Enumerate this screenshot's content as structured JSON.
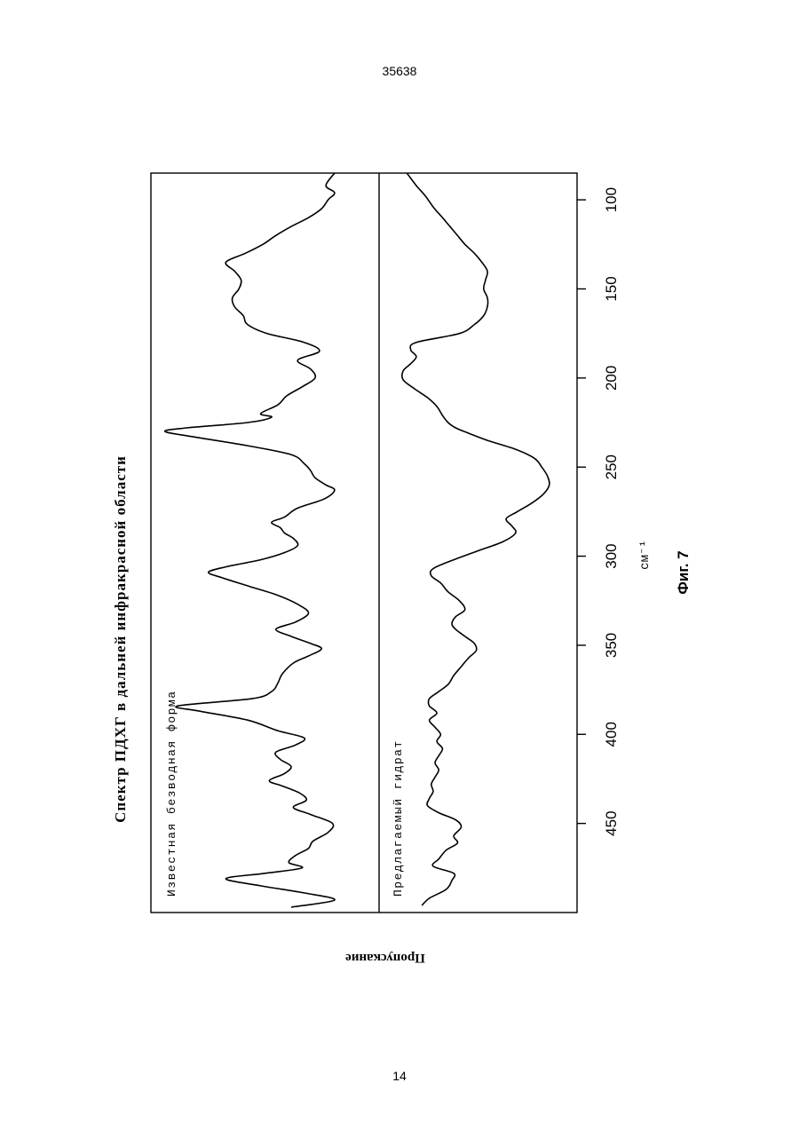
{
  "document": {
    "doc_number": "35638",
    "page_number": "14"
  },
  "chart_data": {
    "type": "line",
    "title": "Спектр ПДХГ в дальней инфракрасной области",
    "xlabel": "см⁻¹",
    "ylabel": "Пропускание",
    "caption": "Фиг. 7",
    "xlim": [
      85,
      500
    ],
    "ylim": [
      0,
      1
    ],
    "x_ticks": [
      100,
      150,
      200,
      250,
      300,
      350,
      400,
      450
    ],
    "series": [
      {
        "name": "Известная безводная форма",
        "points": [
          [
            85,
            0.82
          ],
          [
            92,
            0.78
          ],
          [
            96,
            0.82
          ],
          [
            100,
            0.79
          ],
          [
            105,
            0.76
          ],
          [
            110,
            0.7
          ],
          [
            115,
            0.62
          ],
          [
            120,
            0.55
          ],
          [
            125,
            0.49
          ],
          [
            130,
            0.41
          ],
          [
            135,
            0.32
          ],
          [
            140,
            0.36
          ],
          [
            145,
            0.39
          ],
          [
            150,
            0.38
          ],
          [
            155,
            0.35
          ],
          [
            160,
            0.36
          ],
          [
            165,
            0.4
          ],
          [
            170,
            0.42
          ],
          [
            175,
            0.51
          ],
          [
            180,
            0.68
          ],
          [
            185,
            0.75
          ],
          [
            190,
            0.65
          ],
          [
            195,
            0.71
          ],
          [
            200,
            0.73
          ],
          [
            205,
            0.67
          ],
          [
            210,
            0.6
          ],
          [
            215,
            0.56
          ],
          [
            220,
            0.48
          ],
          [
            222,
            0.53
          ],
          [
            225,
            0.42
          ],
          [
            228,
            0.14
          ],
          [
            230,
            0.04
          ],
          [
            233,
            0.17
          ],
          [
            238,
            0.42
          ],
          [
            243,
            0.62
          ],
          [
            248,
            0.68
          ],
          [
            252,
            0.71
          ],
          [
            256,
            0.73
          ],
          [
            260,
            0.78
          ],
          [
            263,
            0.82
          ],
          [
            268,
            0.77
          ],
          [
            273,
            0.65
          ],
          [
            278,
            0.59
          ],
          [
            281,
            0.53
          ],
          [
            284,
            0.57
          ],
          [
            287,
            0.59
          ],
          [
            290,
            0.63
          ],
          [
            294,
            0.65
          ],
          [
            298,
            0.59
          ],
          [
            302,
            0.48
          ],
          [
            306,
            0.32
          ],
          [
            309,
            0.24
          ],
          [
            312,
            0.3
          ],
          [
            317,
            0.43
          ],
          [
            322,
            0.56
          ],
          [
            327,
            0.65
          ],
          [
            332,
            0.7
          ],
          [
            337,
            0.64
          ],
          [
            341,
            0.55
          ],
          [
            345,
            0.62
          ],
          [
            349,
            0.71
          ],
          [
            352,
            0.76
          ],
          [
            356,
            0.7
          ],
          [
            360,
            0.63
          ],
          [
            366,
            0.58
          ],
          [
            371,
            0.56
          ],
          [
            376,
            0.53
          ],
          [
            380,
            0.44
          ],
          [
            384,
            0.1
          ],
          [
            387,
            0.2
          ],
          [
            392,
            0.42
          ],
          [
            398,
            0.56
          ],
          [
            402,
            0.68
          ],
          [
            406,
            0.64
          ],
          [
            410,
            0.55
          ],
          [
            414,
            0.57
          ],
          [
            418,
            0.62
          ],
          [
            422,
            0.59
          ],
          [
            426,
            0.52
          ],
          [
            429,
            0.58
          ],
          [
            433,
            0.66
          ],
          [
            437,
            0.69
          ],
          [
            441,
            0.63
          ],
          [
            445,
            0.71
          ],
          [
            450,
            0.81
          ],
          [
            455,
            0.79
          ],
          [
            460,
            0.72
          ],
          [
            464,
            0.7
          ],
          [
            468,
            0.64
          ],
          [
            472,
            0.61
          ],
          [
            475,
            0.67
          ],
          [
            478,
            0.5
          ],
          [
            481,
            0.32
          ],
          [
            485,
            0.48
          ],
          [
            489,
            0.68
          ],
          [
            493,
            0.82
          ],
          [
            497,
            0.62
          ]
        ]
      },
      {
        "name": "Предлагаемый гидрат",
        "points": [
          [
            85,
            0.12
          ],
          [
            92,
            0.17
          ],
          [
            98,
            0.22
          ],
          [
            104,
            0.26
          ],
          [
            110,
            0.31
          ],
          [
            115,
            0.35
          ],
          [
            120,
            0.39
          ],
          [
            125,
            0.43
          ],
          [
            130,
            0.48
          ],
          [
            135,
            0.52
          ],
          [
            140,
            0.55
          ],
          [
            145,
            0.54
          ],
          [
            150,
            0.53
          ],
          [
            155,
            0.55
          ],
          [
            160,
            0.55
          ],
          [
            165,
            0.53
          ],
          [
            170,
            0.48
          ],
          [
            175,
            0.4
          ],
          [
            180,
            0.17
          ],
          [
            184,
            0.14
          ],
          [
            188,
            0.17
          ],
          [
            192,
            0.14
          ],
          [
            196,
            0.1
          ],
          [
            201,
            0.1
          ],
          [
            206,
            0.16
          ],
          [
            211,
            0.23
          ],
          [
            216,
            0.28
          ],
          [
            221,
            0.31
          ],
          [
            225,
            0.34
          ],
          [
            228,
            0.38
          ],
          [
            231,
            0.45
          ],
          [
            235,
            0.55
          ],
          [
            240,
            0.7
          ],
          [
            245,
            0.8
          ],
          [
            250,
            0.84
          ],
          [
            255,
            0.87
          ],
          [
            260,
            0.88
          ],
          [
            265,
            0.85
          ],
          [
            270,
            0.79
          ],
          [
            275,
            0.71
          ],
          [
            279,
            0.65
          ],
          [
            283,
            0.68
          ],
          [
            287,
            0.7
          ],
          [
            292,
            0.63
          ],
          [
            297,
            0.5
          ],
          [
            302,
            0.37
          ],
          [
            307,
            0.26
          ],
          [
            311,
            0.25
          ],
          [
            315,
            0.3
          ],
          [
            320,
            0.34
          ],
          [
            325,
            0.4
          ],
          [
            330,
            0.43
          ],
          [
            334,
            0.38
          ],
          [
            338,
            0.36
          ],
          [
            341,
            0.38
          ],
          [
            345,
            0.43
          ],
          [
            349,
            0.48
          ],
          [
            353,
            0.49
          ],
          [
            357,
            0.45
          ],
          [
            362,
            0.41
          ],
          [
            367,
            0.37
          ],
          [
            372,
            0.34
          ],
          [
            376,
            0.29
          ],
          [
            380,
            0.24
          ],
          [
            384,
            0.24
          ],
          [
            388,
            0.28
          ],
          [
            392,
            0.24
          ],
          [
            396,
            0.27
          ],
          [
            400,
            0.3
          ],
          [
            404,
            0.28
          ],
          [
            408,
            0.31
          ],
          [
            412,
            0.29
          ],
          [
            416,
            0.27
          ],
          [
            420,
            0.29
          ],
          [
            424,
            0.27
          ],
          [
            428,
            0.25
          ],
          [
            432,
            0.26
          ],
          [
            436,
            0.24
          ],
          [
            440,
            0.23
          ],
          [
            444,
            0.29
          ],
          [
            448,
            0.38
          ],
          [
            452,
            0.41
          ],
          [
            457,
            0.37
          ],
          [
            461,
            0.39
          ],
          [
            465,
            0.33
          ],
          [
            470,
            0.29
          ],
          [
            474,
            0.26
          ],
          [
            478,
            0.37
          ],
          [
            482,
            0.36
          ],
          [
            487,
            0.33
          ],
          [
            492,
            0.24
          ],
          [
            496,
            0.2
          ]
        ]
      }
    ]
  }
}
